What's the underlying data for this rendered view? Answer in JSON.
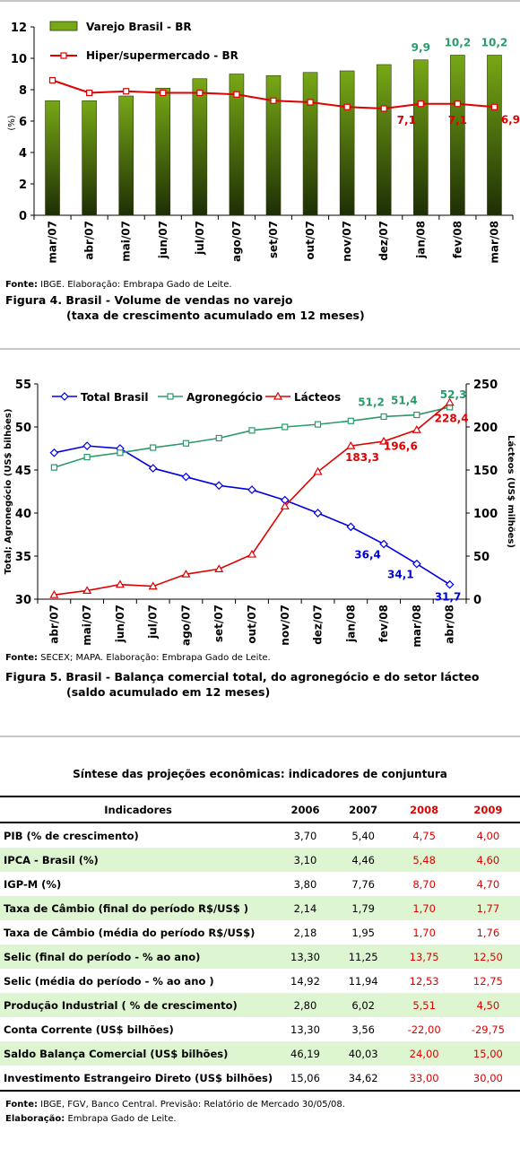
{
  "figure4": {
    "source_label": "Fonte:",
    "source": " IBGE. Elaboração: Embrapa Gado de Leite.",
    "caption_line1": "Figura 4. Brasil - Volume de vendas no varejo",
    "caption_line2": "(taxa de crescimento acumulado em 12 meses)"
  },
  "figure5": {
    "source_label": "Fonte:",
    "source": " SECEX; MAPA. Elaboração: Embrapa Gado de Leite.",
    "caption_line1": "Figura 5. Brasil - Balança comercial total, do agronegócio e do setor lácteo",
    "caption_line2": "(saldo acumulado em 12 meses)"
  },
  "table": {
    "title": "Síntese das projeções econômicas: indicadores de conjuntura",
    "headers": [
      "Indicadores",
      "2006",
      "2007",
      "2008",
      "2009"
    ],
    "rows": [
      {
        "label": "PIB (% de crescimento)",
        "values": [
          "3,70",
          "5,40",
          "4,75",
          "4,00"
        ]
      },
      {
        "label": "IPCA - Brasil (%)",
        "values": [
          "3,10",
          "4,46",
          "5,48",
          "4,60"
        ]
      },
      {
        "label": "IGP-M (%)",
        "values": [
          "3,80",
          "7,76",
          "8,70",
          "4,70"
        ]
      },
      {
        "label": "Taxa de Câmbio (final do período R$/US$ )",
        "values": [
          "2,14",
          "1,79",
          "1,70",
          "1,77"
        ]
      },
      {
        "label": "Taxa de Câmbio (média do período R$/US$)",
        "values": [
          "2,18",
          "1,95",
          "1,70",
          "1,76"
        ]
      },
      {
        "label": "Selic (final do período - % ao ano)",
        "values": [
          "13,30",
          "11,25",
          "13,75",
          "12,50"
        ]
      },
      {
        "label": "Selic (média do período - % ao ano )",
        "values": [
          "14,92",
          "11,94",
          "12,53",
          "12,75"
        ]
      },
      {
        "label": "Produção Industrial ( % de crescimento)",
        "values": [
          "2,80",
          "6,02",
          "5,51",
          "4,50"
        ]
      },
      {
        "label": "Conta Corrente (US$ bilhões)",
        "values": [
          "13,30",
          "3,56",
          "-22,00",
          "-29,75"
        ]
      },
      {
        "label": "Saldo Balança Comercial (US$ bilhões)",
        "values": [
          "46,19",
          "40,03",
          "24,00",
          "15,00"
        ]
      },
      {
        "label": "Investimento Estrangeiro Direto (US$ bilhões)",
        "values": [
          "15,06",
          "34,62",
          "33,00",
          "30,00"
        ]
      }
    ],
    "source_label": "Fonte:",
    "source": " IBGE, FGV, Banco Central. Previsão: Relatório de Mercado 30/05/08.",
    "credit_label": "Elaboração:",
    "credit": " Embrapa Gado de Leite."
  },
  "chart_data": [
    {
      "type": "bar",
      "ylabel": "(%)",
      "ylim": [
        0,
        12
      ],
      "yticks": [
        0,
        2,
        4,
        6,
        8,
        10,
        12
      ],
      "grid": false,
      "legend": "top-left",
      "categories": [
        "mar/07",
        "abr/07",
        "mai/07",
        "jun/07",
        "jul/07",
        "ago/07",
        "set/07",
        "out/07",
        "nov/07",
        "dez/07",
        "jan/08",
        "fev/08",
        "mar/08"
      ],
      "series": [
        {
          "name": "Varejo Brasil - BR",
          "type": "bar",
          "color": "#77a816",
          "values": [
            7.3,
            7.3,
            7.6,
            8.1,
            8.7,
            9.0,
            8.9,
            9.1,
            9.2,
            9.6,
            9.9,
            10.2,
            10.2
          ]
        },
        {
          "name": "Hiper/supermercado - BR",
          "type": "line",
          "color": "#e00000",
          "values": [
            8.6,
            7.8,
            7.9,
            7.8,
            7.8,
            7.7,
            7.3,
            7.2,
            6.9,
            6.8,
            7.1,
            7.1,
            6.9
          ]
        }
      ],
      "data_labels": [
        {
          "series": 0,
          "index": 10,
          "text": "9,9"
        },
        {
          "series": 0,
          "index": 11,
          "text": "10,2"
        },
        {
          "series": 0,
          "index": 12,
          "text": "10,2"
        },
        {
          "series": 1,
          "index": 10,
          "text": "7,1"
        },
        {
          "series": 1,
          "index": 11,
          "text": "7,1"
        },
        {
          "series": 1,
          "index": 12,
          "text": "6,9"
        }
      ]
    },
    {
      "type": "line",
      "ylabel": "Total; Agronegócio (US$ bilhões)",
      "ylabel_right": "Lácteos (US$ milhões)",
      "ylim": [
        30,
        55
      ],
      "yticks": [
        30,
        35,
        40,
        45,
        50,
        55
      ],
      "ylim_right": [
        0,
        250
      ],
      "yticks_right": [
        0,
        50,
        100,
        150,
        200,
        250
      ],
      "grid": false,
      "legend": "top",
      "categories": [
        "abr/07",
        "mai/07",
        "jun/07",
        "jul/07",
        "ago/07",
        "set/07",
        "out/07",
        "nov/07",
        "dez/07",
        "jan/08",
        "fev/08",
        "mar/08",
        "abr/08"
      ],
      "series": [
        {
          "name": "Total Brasil",
          "axis": "left",
          "marker": "diamond",
          "color": "#0000e0",
          "values": [
            47.0,
            47.8,
            47.5,
            45.2,
            44.2,
            43.2,
            42.7,
            41.5,
            40.0,
            38.4,
            36.4,
            34.1,
            31.7
          ]
        },
        {
          "name": "Agronegócio",
          "axis": "left",
          "marker": "square",
          "color": "#2a9a6a",
          "values": [
            45.3,
            46.5,
            47.0,
            47.6,
            48.1,
            48.7,
            49.6,
            50.0,
            50.3,
            50.7,
            51.2,
            51.4,
            52.3
          ]
        },
        {
          "name": "Lácteos",
          "axis": "right",
          "marker": "triangle",
          "color": "#e00000",
          "values": [
            5,
            10,
            17,
            15,
            29,
            35,
            52,
            108,
            148,
            178,
            183.3,
            196.6,
            228.4
          ]
        }
      ],
      "data_labels": [
        {
          "series": 0,
          "index": 10,
          "text": "36,4"
        },
        {
          "series": 0,
          "index": 11,
          "text": "34,1"
        },
        {
          "series": 0,
          "index": 12,
          "text": "31,7"
        },
        {
          "series": 1,
          "index": 10,
          "text": "51,2"
        },
        {
          "series": 1,
          "index": 11,
          "text": "51,4"
        },
        {
          "series": 1,
          "index": 12,
          "text": "52,3"
        },
        {
          "series": 2,
          "index": 10,
          "text": "183,3"
        },
        {
          "series": 2,
          "index": 11,
          "text": "196,6"
        },
        {
          "series": 2,
          "index": 12,
          "text": "228,4"
        }
      ]
    }
  ]
}
